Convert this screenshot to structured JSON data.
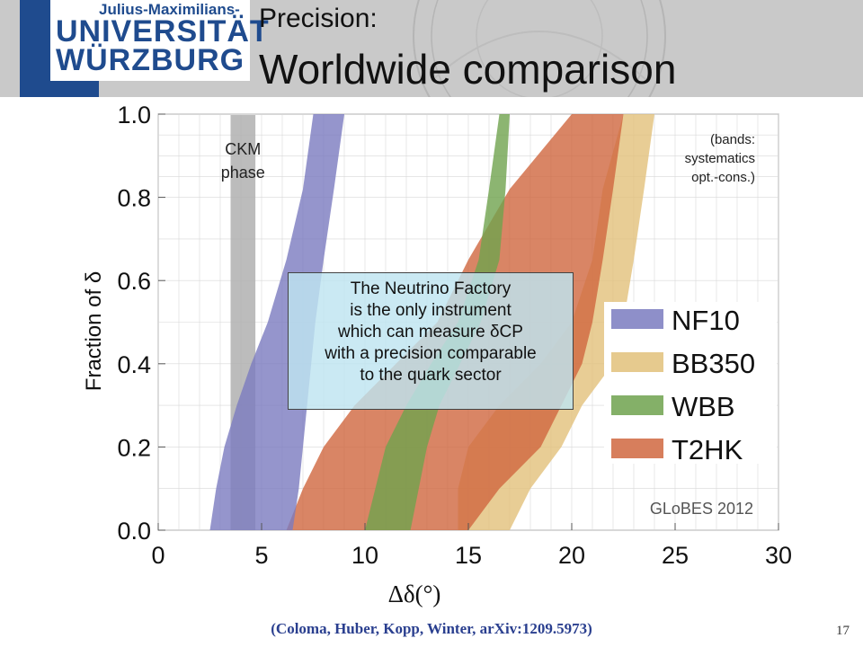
{
  "header": {
    "university_sub": "Julius-Maximilians-",
    "university_line1": "UNIVERSITÄT",
    "university_line2": "WÜRZBURG",
    "title_small": "Precision:",
    "title_big": "Worldwide comparison"
  },
  "colors": {
    "header_bg": "#c9c9c9",
    "logo_blue": "#1f4b8e",
    "NF10": "#7a7bbf",
    "BB350": "#e2c17a",
    "WBB": "#6fa24e",
    "T2HK": "#d0673f",
    "CKM": "#b0b0b0"
  },
  "chart_data": {
    "type": "area",
    "xlabel": "Δδ(°)",
    "ylabel": "Fraction of δ",
    "xlim": [
      0,
      30
    ],
    "ylim": [
      0,
      1
    ],
    "x_ticks": [
      "0",
      "5",
      "10",
      "15",
      "20",
      "25",
      "30"
    ],
    "y_ticks": [
      "0.0",
      "0.2",
      "0.4",
      "0.6",
      "0.8",
      "1.0"
    ],
    "legend_position": "right",
    "watermark": "GLoBES 2012",
    "band_note_lines": [
      "(bands:",
      "systematics",
      "opt.-cons.)"
    ],
    "ckm_label_lines": [
      "CKM",
      "phase"
    ],
    "ckm_range": [
      3.5,
      4.7
    ],
    "y_grid": [
      0,
      0.1,
      0.2,
      0.3,
      0.4,
      0.5,
      0.6,
      0.7,
      0.8,
      0.85,
      0.9,
      0.95,
      1.0
    ],
    "series": [
      {
        "name": "BB350",
        "left": [
          14.5,
          14.5,
          15.0,
          16.5,
          18.5,
          20.0,
          21.0,
          21.5,
          22.5
        ],
        "right": [
          17.0,
          18.0,
          19.5,
          20.5,
          22.0,
          22.5,
          23.0,
          23.5,
          24.0
        ]
      },
      {
        "name": "T2HK",
        "left": [
          6.2,
          7.0,
          8.0,
          9.5,
          11.5,
          13.5,
          15.0,
          17.0,
          20.0
        ],
        "right": [
          15.0,
          16.5,
          18.5,
          19.5,
          20.5,
          21.0,
          21.5,
          22.0,
          22.5
        ]
      },
      {
        "name": "WBB",
        "left": [
          10.0,
          10.5,
          11.0,
          12.0,
          13.2,
          14.5,
          15.5,
          16.0,
          16.5
        ],
        "right": [
          12.2,
          12.6,
          13.0,
          13.6,
          14.6,
          15.6,
          16.5,
          16.8,
          17.0
        ]
      },
      {
        "name": "NF10",
        "left": [
          2.5,
          2.8,
          3.2,
          3.8,
          4.5,
          5.3,
          6.2,
          7.0,
          7.5
        ],
        "right": [
          6.5,
          6.8,
          7.0,
          7.2,
          7.4,
          7.6,
          8.0,
          8.5,
          9.0
        ]
      }
    ],
    "band_y": [
      0.0,
      0.1,
      0.2,
      0.3,
      0.4,
      0.5,
      0.65,
      0.82,
      1.0
    ],
    "legend": [
      "NF10",
      "BB350",
      "WBB",
      "T2HK"
    ]
  },
  "callout_lines": [
    "The Neutrino Factory",
    "is the only instrument",
    "which can measure δCP",
    "with a precision comparable",
    "to the quark sector"
  ],
  "citation": "(Coloma, Huber, Kopp, Winter, arXiv:1209.5973)",
  "page_number": "17"
}
